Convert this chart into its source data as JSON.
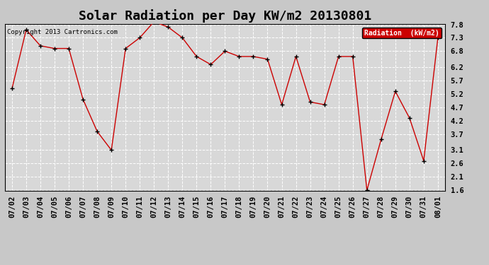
{
  "title": "Solar Radiation per Day KW/m2 20130801",
  "copyright": "Copyright 2013 Cartronics.com",
  "legend_label": "Radiation  (kW/m2)",
  "dates": [
    "07/02",
    "07/03",
    "07/04",
    "07/05",
    "07/06",
    "07/07",
    "07/08",
    "07/09",
    "07/10",
    "07/11",
    "07/12",
    "07/13",
    "07/14",
    "07/15",
    "07/16",
    "07/17",
    "07/18",
    "07/19",
    "07/20",
    "07/21",
    "07/22",
    "07/23",
    "07/24",
    "07/25",
    "07/26",
    "07/27",
    "07/28",
    "07/29",
    "07/30",
    "07/31",
    "08/01"
  ],
  "values": [
    5.4,
    7.6,
    7.0,
    6.9,
    6.9,
    5.0,
    3.8,
    3.1,
    6.9,
    7.3,
    7.9,
    7.7,
    7.3,
    6.6,
    6.3,
    6.8,
    6.6,
    6.6,
    6.5,
    4.8,
    6.6,
    4.9,
    4.8,
    6.6,
    6.6,
    1.6,
    3.5,
    5.3,
    4.3,
    2.7,
    7.3
  ],
  "ylim": [
    1.6,
    7.8
  ],
  "yticks": [
    1.6,
    2.1,
    2.6,
    3.1,
    3.7,
    4.2,
    4.7,
    5.2,
    5.7,
    6.2,
    6.8,
    7.3,
    7.8
  ],
  "line_color": "#cc0000",
  "marker_color": "#000000",
  "bg_color": "#c8c8c8",
  "plot_bg_color": "#d8d8d8",
  "grid_color": "#ffffff",
  "title_fontsize": 13,
  "tick_fontsize": 7.5,
  "legend_bg": "#cc0000",
  "legend_text_color": "#ffffff"
}
